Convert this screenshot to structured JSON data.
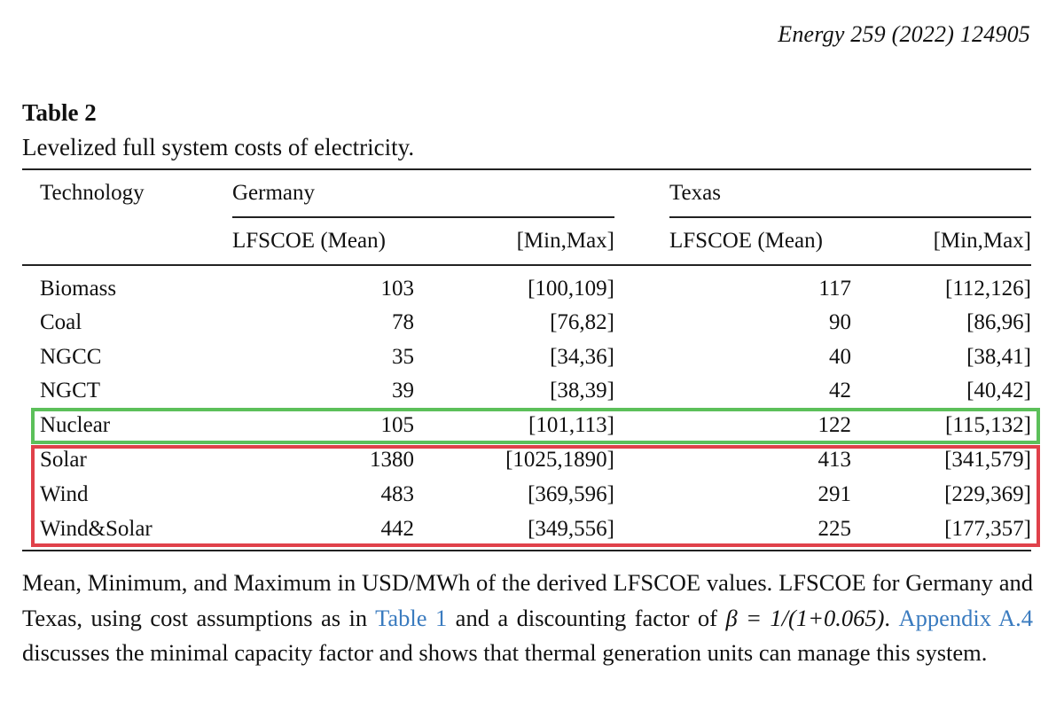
{
  "journal_ref": "Energy 259 (2022) 124905",
  "table": {
    "label": "Table 2",
    "caption": "Levelized full system costs of electricity.",
    "headers": {
      "technology": "Technology",
      "germany": "Germany",
      "texas": "Texas",
      "mean": "LFSCOE (Mean)",
      "minmax": "[Min,Max]"
    },
    "rows": [
      {
        "technology": "Biomass",
        "de_mean": "103",
        "de_range": "[100,109]",
        "tx_mean": "117",
        "tx_range": "[112,126]"
      },
      {
        "technology": "Coal",
        "de_mean": "78",
        "de_range": "[76,82]",
        "tx_mean": "90",
        "tx_range": "[86,96]"
      },
      {
        "technology": "NGCC",
        "de_mean": "35",
        "de_range": "[34,36]",
        "tx_mean": "40",
        "tx_range": "[38,41]"
      },
      {
        "technology": "NGCT",
        "de_mean": "39",
        "de_range": "[38,39]",
        "tx_mean": "42",
        "tx_range": "[40,42]"
      },
      {
        "technology": "Nuclear",
        "de_mean": "105",
        "de_range": "[101,113]",
        "tx_mean": "122",
        "tx_range": "[115,132]"
      },
      {
        "technology": "Solar",
        "de_mean": "1380",
        "de_range": "[1025,1890]",
        "tx_mean": "413",
        "tx_range": "[341,579]"
      },
      {
        "technology": "Wind",
        "de_mean": "483",
        "de_range": "[369,596]",
        "tx_mean": "291",
        "tx_range": "[229,369]"
      },
      {
        "technology": "Wind&Solar",
        "de_mean": "442",
        "de_range": "[349,556]",
        "tx_mean": "225",
        "tx_range": "[177,357]"
      }
    ],
    "highlight_green_color": "#5cc05a",
    "highlight_red_color": "#e0414a"
  },
  "footnote": {
    "part1": "Mean, Minimum, and Maximum in USD/MWh of the derived LFSCOE values. LFSCOE for Germany and Texas, using cost assumptions as in ",
    "link1": "Table 1",
    "part2": " and a discounting factor of ",
    "formula": "β = 1/(1+0.065)",
    "part3": ". ",
    "link2": "Appendix A.4",
    "part4": " discusses the minimal capacity factor and shows that thermal generation units can manage this system."
  }
}
